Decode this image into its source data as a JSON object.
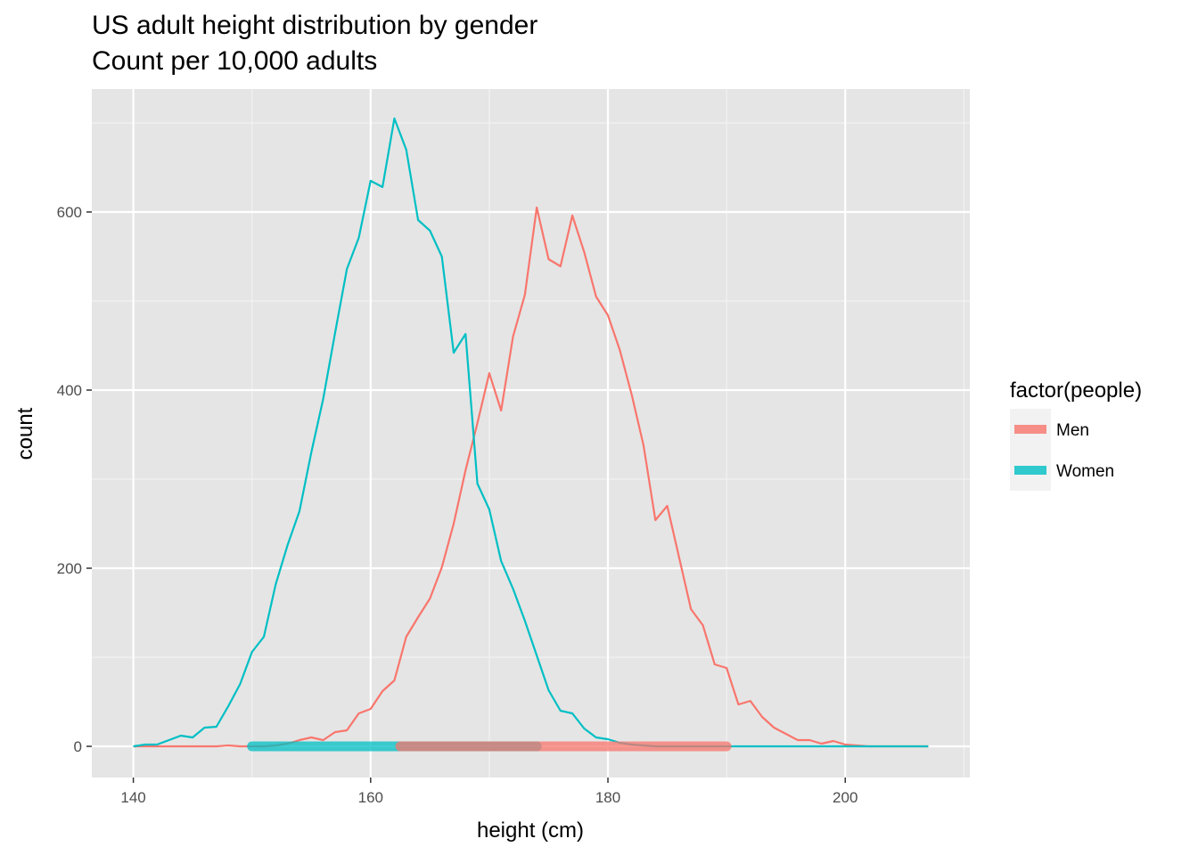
{
  "chart_data": {
    "type": "line",
    "title": "US adult height distribution by gender",
    "subtitle": "Count per 10,000 adults",
    "xlabel": "height (cm)",
    "ylabel": "count",
    "xlim": [
      136.5,
      210.5
    ],
    "ylim": [
      -35,
      738
    ],
    "x_ticks": [
      140,
      160,
      180,
      200
    ],
    "y_ticks": [
      0,
      200,
      400,
      600
    ],
    "grid": true,
    "legend": {
      "title": "factor(people)",
      "position": "right"
    },
    "series": [
      {
        "name": "Men",
        "color": "#F8766D",
        "x": [
          140,
          141,
          142,
          143,
          144,
          145,
          146,
          147,
          148,
          149,
          150,
          151,
          152,
          153,
          154,
          155,
          156,
          157,
          158,
          159,
          160,
          161,
          162,
          163,
          164,
          165,
          166,
          167,
          168,
          169,
          170,
          171,
          172,
          173,
          174,
          175,
          176,
          177,
          178,
          179,
          180,
          181,
          182,
          183,
          184,
          185,
          186,
          187,
          188,
          189,
          190,
          191,
          192,
          193,
          194,
          195,
          196,
          197,
          198,
          199,
          200,
          201,
          202,
          203,
          204,
          205,
          206,
          207
        ],
        "y": [
          0,
          0,
          0,
          0,
          0,
          0,
          0,
          0,
          1,
          0,
          0,
          0,
          1,
          3,
          7,
          10,
          7,
          16,
          18,
          37,
          42,
          62,
          74,
          123,
          145,
          166,
          201,
          250,
          310,
          363,
          419,
          377,
          460,
          507,
          605,
          547,
          539,
          596,
          555,
          505,
          484,
          445,
          395,
          338,
          254,
          270,
          212,
          154,
          136,
          92,
          88,
          47,
          51,
          33,
          21,
          14,
          7,
          7,
          3,
          6,
          2,
          1,
          0,
          0,
          0,
          0,
          0,
          0
        ],
        "range_bar": [
          162.5,
          190
        ]
      },
      {
        "name": "Women",
        "color": "#00BFC4",
        "x": [
          140,
          141,
          142,
          143,
          144,
          145,
          146,
          147,
          148,
          149,
          150,
          151,
          152,
          153,
          154,
          155,
          156,
          157,
          158,
          159,
          160,
          161,
          162,
          163,
          164,
          165,
          166,
          167,
          168,
          169,
          170,
          171,
          172,
          173,
          174,
          175,
          176,
          177,
          178,
          179,
          180,
          181,
          182,
          183,
          184,
          185,
          186,
          187,
          188,
          189,
          190,
          191,
          192,
          193,
          194,
          195,
          196,
          197,
          198,
          199,
          200,
          201,
          202,
          203,
          204,
          205,
          206,
          207
        ],
        "y": [
          0,
          2,
          2,
          7,
          12,
          10,
          21,
          22,
          45,
          70,
          106,
          123,
          182,
          226,
          264,
          330,
          390,
          464,
          536,
          571,
          635,
          628,
          705,
          670,
          591,
          579,
          550,
          442,
          463,
          295,
          266,
          208,
          177,
          141,
          102,
          63,
          40,
          37,
          20,
          10,
          8,
          4,
          2,
          1,
          0,
          0,
          0,
          0,
          0,
          0,
          0,
          0,
          0,
          0,
          0,
          0,
          0,
          0,
          0,
          0,
          0,
          0,
          0,
          0,
          0,
          0,
          0,
          0
        ],
        "range_bar": [
          150,
          174
        ]
      }
    ]
  }
}
